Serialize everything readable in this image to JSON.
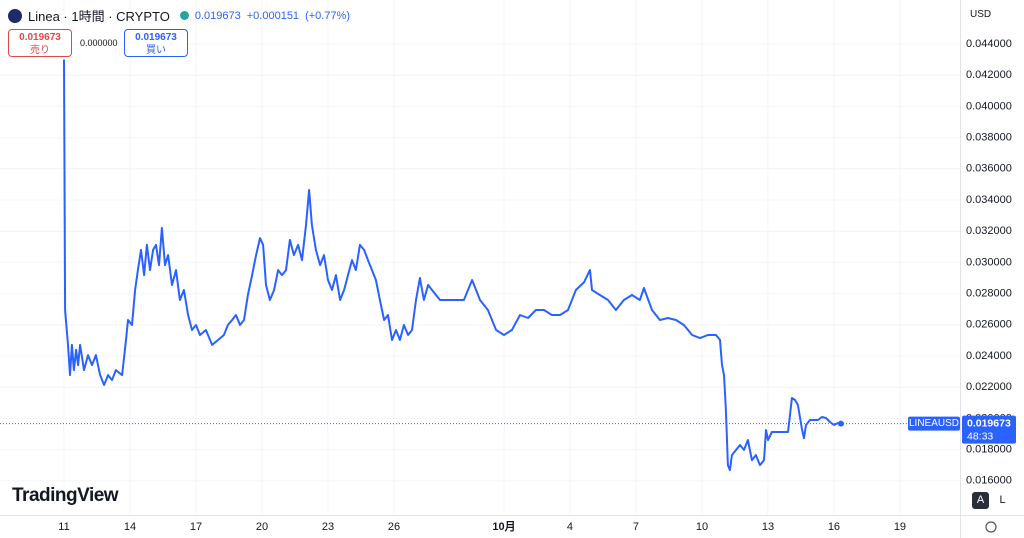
{
  "header": {
    "symbol": "Linea · 1時間 · CRYPTO",
    "price": "0.019673",
    "change": "+0.000151",
    "change_pct": "(+0.77%)",
    "currency": "USD"
  },
  "trade": {
    "sell_price": "0.019673",
    "sell_label": "売り",
    "spread": "0.000000",
    "buy_price": "0.019673",
    "buy_label": "買い"
  },
  "brand": "TradingView",
  "buttons": [
    "A",
    "L"
  ],
  "chart_data": {
    "type": "line",
    "last_price_label": "0.019673",
    "countdown": "48:33",
    "series": [
      {
        "name": "LINEAUSD",
        "color": "#2962ff",
        "x": [
          0,
          0.05,
          0.18,
          0.27,
          0.36,
          0.45,
          0.55,
          0.64,
          0.73,
          0.91,
          1.09,
          1.27,
          1.45,
          1.64,
          1.82,
          2,
          2.18,
          2.36,
          2.64,
          2.82,
          2.91,
          3.09,
          3.23,
          3.36,
          3.5,
          3.64,
          3.77,
          3.91,
          4.05,
          4.18,
          4.32,
          4.45,
          4.59,
          4.73,
          4.91,
          5.09,
          5.27,
          5.45,
          5.64,
          5.82,
          6,
          6.18,
          6.45,
          6.73,
          7,
          7.27,
          7.45,
          7.64,
          7.82,
          8,
          8.18,
          8.36,
          8.55,
          8.73,
          8.91,
          9.05,
          9.18,
          9.36,
          9.55,
          9.73,
          9.91,
          10.09,
          10.27,
          10.45,
          10.64,
          10.82,
          11,
          11.14,
          11.27,
          11.45,
          11.64,
          11.82,
          12,
          12.18,
          12.36,
          12.55,
          12.73,
          12.91,
          13.09,
          13.27,
          13.45,
          13.64,
          13.82,
          14,
          14.18,
          14.36,
          14.55,
          14.73,
          14.91,
          15.09,
          15.27,
          15.45,
          15.64,
          15.82,
          16,
          16.18,
          16.36,
          16.55,
          16.73,
          16.91,
          17.09,
          17.45,
          17.82,
          18.18,
          18.55,
          18.91,
          19.27,
          19.64,
          20,
          20.36,
          20.73,
          21.09,
          21.45,
          21.82,
          22.18,
          22.55,
          22.91,
          23.27,
          23.64,
          23.91,
          24,
          24.36,
          24.73,
          25.09,
          25.45,
          25.82,
          26.18,
          26.36,
          26.73,
          27.09,
          27.45,
          27.82,
          28.18,
          28.55,
          28.91,
          29.27,
          29.64,
          29.82,
          29.91,
          30,
          30.09,
          30.18,
          30.27,
          30.36,
          30.55,
          30.73,
          30.91,
          31.09,
          31.27,
          31.45,
          31.64,
          31.82,
          31.91,
          32,
          32.18,
          32.55,
          32.91,
          33,
          33.09,
          33.23,
          33.36,
          33.55,
          33.64,
          33.73,
          33.91,
          34.27,
          34.45,
          34.64,
          34.82,
          35,
          35.18,
          35.32
        ],
        "values": [
          0.043,
          0.02695,
          0.02471,
          0.02278,
          0.02471,
          0.0231,
          0.02439,
          0.02342,
          0.02471,
          0.0231,
          0.02406,
          0.02342,
          0.02406,
          0.02278,
          0.02214,
          0.02278,
          0.02246,
          0.0231,
          0.02278,
          0.02503,
          0.02631,
          0.02599,
          0.02823,
          0.02951,
          0.0308,
          0.02919,
          0.03112,
          0.02951,
          0.0308,
          0.03112,
          0.02983,
          0.03221,
          0.02983,
          0.03047,
          0.02855,
          0.02951,
          0.02759,
          0.02823,
          0.02663,
          0.02567,
          0.02599,
          0.02535,
          0.02567,
          0.02471,
          0.02503,
          0.02535,
          0.02599,
          0.02631,
          0.02663,
          0.02599,
          0.02631,
          0.02791,
          0.02919,
          0.03047,
          0.03156,
          0.03112,
          0.02855,
          0.02759,
          0.02823,
          0.02951,
          0.02919,
          0.02951,
          0.03144,
          0.03047,
          0.03112,
          0.03015,
          0.0324,
          0.03464,
          0.0324,
          0.0308,
          0.02983,
          0.03047,
          0.02887,
          0.02823,
          0.02919,
          0.02759,
          0.02823,
          0.02919,
          0.03015,
          0.02951,
          0.03112,
          0.0308,
          0.03015,
          0.02951,
          0.02887,
          0.02759,
          0.02631,
          0.02663,
          0.02503,
          0.02567,
          0.02503,
          0.02599,
          0.02535,
          0.02567,
          0.02759,
          0.029,
          0.02759,
          0.02855,
          0.02823,
          0.02791,
          0.02759,
          0.02759,
          0.02759,
          0.02759,
          0.02887,
          0.02759,
          0.02695,
          0.02567,
          0.02535,
          0.02567,
          0.02663,
          0.02644,
          0.02695,
          0.02695,
          0.02663,
          0.02663,
          0.02695,
          0.02823,
          0.02874,
          0.02951,
          0.02823,
          0.02791,
          0.02759,
          0.02695,
          0.02759,
          0.02791,
          0.02759,
          0.02836,
          0.02695,
          0.02631,
          0.02644,
          0.02631,
          0.02599,
          0.02535,
          0.02515,
          0.02535,
          0.02535,
          0.02503,
          0.02342,
          0.02278,
          0.02054,
          0.01701,
          0.01669,
          0.01765,
          0.01798,
          0.0183,
          0.01798,
          0.01862,
          0.01733,
          0.01765,
          0.01701,
          0.01733,
          0.01926,
          0.01862,
          0.01913,
          0.01913,
          0.01913,
          0.02022,
          0.02131,
          0.02118,
          0.02086,
          0.01926,
          0.01874,
          0.01958,
          0.0199,
          0.0199,
          0.02009,
          0.02003,
          0.01977,
          0.01958,
          0.01971,
          0.01967
        ]
      }
    ],
    "xlim": [
      -2.91,
      40.73
    ],
    "xticks": [
      {
        "value": 0,
        "label": "11"
      },
      {
        "value": 3,
        "label": "14"
      },
      {
        "value": 6,
        "label": "17"
      },
      {
        "value": 9,
        "label": "20"
      },
      {
        "value": 12,
        "label": "23"
      },
      {
        "value": 15,
        "label": "26"
      },
      {
        "value": 20,
        "label": "10月"
      },
      {
        "value": 23,
        "label": "4"
      },
      {
        "value": 26,
        "label": "7"
      },
      {
        "value": 29,
        "label": "10"
      },
      {
        "value": 32,
        "label": "13"
      },
      {
        "value": 35,
        "label": "16"
      },
      {
        "value": 38,
        "label": "19"
      }
    ],
    "ylim": [
      0.01381,
      0.04682
    ],
    "yticks": [
      {
        "value": 0.016,
        "label": "0.016000"
      },
      {
        "value": 0.018,
        "label": "0.018000"
      },
      {
        "value": 0.02,
        "label": "0.020000"
      },
      {
        "value": 0.022,
        "label": "0.022000"
      },
      {
        "value": 0.024,
        "label": "0.024000"
      },
      {
        "value": 0.026,
        "label": "0.026000"
      },
      {
        "value": 0.028,
        "label": "0.028000"
      },
      {
        "value": 0.03,
        "label": "0.030000"
      },
      {
        "value": 0.032,
        "label": "0.032000"
      },
      {
        "value": 0.034,
        "label": "0.034000"
      },
      {
        "value": 0.036,
        "label": "0.036000"
      },
      {
        "value": 0.038,
        "label": "0.038000"
      },
      {
        "value": 0.04,
        "label": "0.040000"
      },
      {
        "value": 0.042,
        "label": "0.042000"
      },
      {
        "value": 0.044,
        "label": "0.044000"
      }
    ],
    "grid": true
  }
}
